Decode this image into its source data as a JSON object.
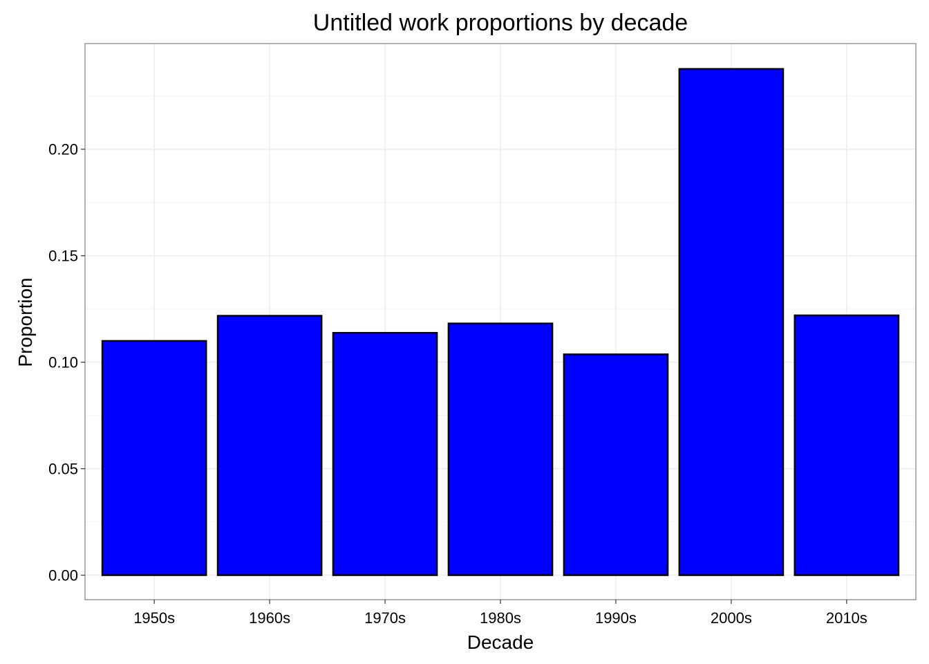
{
  "chart_data": {
    "type": "bar",
    "title": "Untitled work proportions by decade",
    "xlabel": "Decade",
    "ylabel": "Proportion",
    "categories": [
      "1950s",
      "1960s",
      "1970s",
      "1980s",
      "1990s",
      "2000s",
      "2010s"
    ],
    "values": [
      0.11,
      0.1218,
      0.1138,
      0.1182,
      0.1037,
      0.2377,
      0.122
    ],
    "ylim": [
      -0.0115,
      0.2496
    ],
    "yticks": [
      0.0,
      0.05,
      0.1,
      0.15,
      0.2
    ],
    "ytick_labels": [
      "0.00",
      "0.05",
      "0.10",
      "0.15",
      "0.20"
    ],
    "grid": true,
    "legend": "none",
    "colors": {
      "bar_fill": "#0000FF",
      "bar_stroke": "#000000",
      "grid_major": "#EBEBEB",
      "grid_minor": "#F5F5F5",
      "panel_border": "#7F7F7F"
    }
  }
}
